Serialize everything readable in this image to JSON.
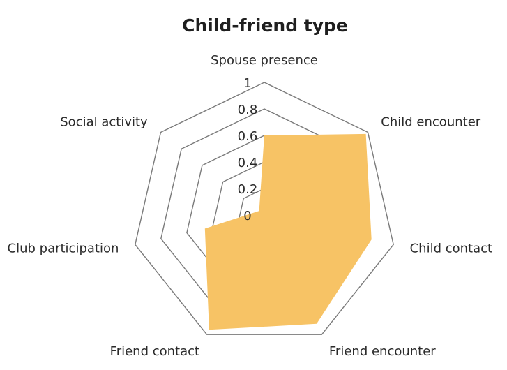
{
  "chart_data": {
    "type": "radar",
    "title": "Child-friend type",
    "axes": [
      "Spouse presence",
      "Child encounter",
      "Child contact",
      "Friend encounter",
      "Friend contact",
      "Club participation",
      "Social activity"
    ],
    "range": [
      0,
      1
    ],
    "ticks": [
      "0",
      "0.2",
      "0.4",
      "0.6",
      "0.8",
      "1"
    ],
    "tick_values": [
      0,
      0.2,
      0.4,
      0.6,
      0.8,
      1
    ],
    "series": [
      {
        "values": [
          0.6,
          0.98,
          0.83,
          0.91,
          0.96,
          0.46,
          0.05
        ]
      }
    ],
    "grid": true,
    "colors": {
      "fill": "#f7c365",
      "grid": "#7a7a7a"
    }
  }
}
